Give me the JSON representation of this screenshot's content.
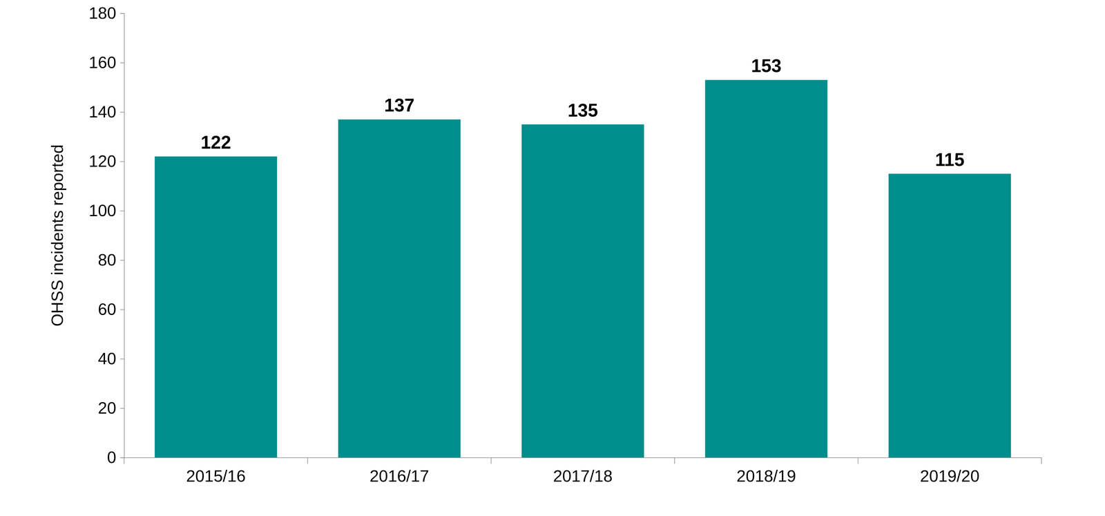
{
  "chart_data": {
    "type": "bar",
    "y_label": "OHSS incidents reported",
    "categories": [
      "2015/16",
      "2016/17",
      "2017/18",
      "2018/19",
      "2019/20"
    ],
    "values": [
      122,
      137,
      135,
      153,
      115
    ],
    "color": "#008e8c",
    "ylim": [
      0,
      180
    ],
    "yticks": [
      0,
      20,
      40,
      60,
      80,
      100,
      120,
      140,
      160,
      180
    ],
    "grid": false,
    "data_labels": true
  }
}
